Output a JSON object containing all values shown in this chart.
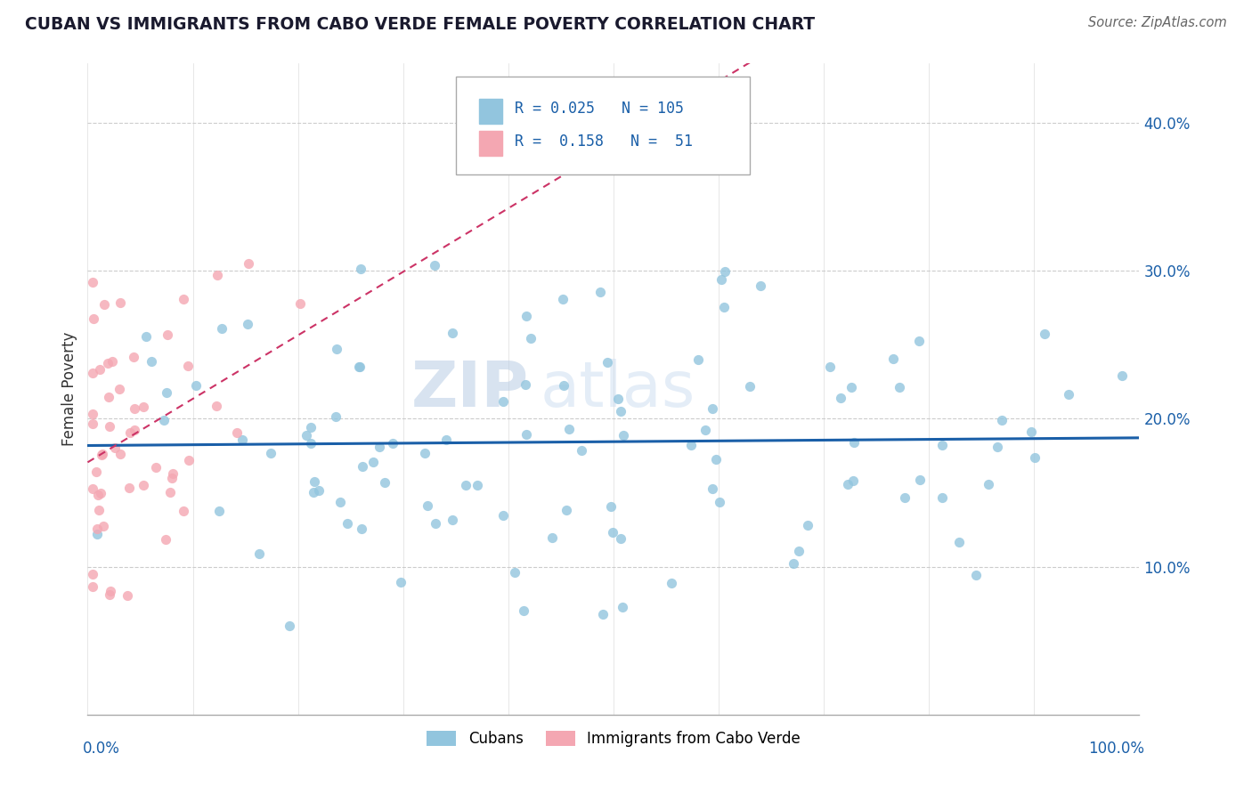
{
  "title": "CUBAN VS IMMIGRANTS FROM CABO VERDE FEMALE POVERTY CORRELATION CHART",
  "source": "Source: ZipAtlas.com",
  "ylabel": "Female Poverty",
  "right_yticks": [
    "40.0%",
    "30.0%",
    "20.0%",
    "10.0%"
  ],
  "right_ytick_vals": [
    0.4,
    0.3,
    0.2,
    0.1
  ],
  "legend_cubans_R": "0.025",
  "legend_cubans_N": "105",
  "legend_cabo_R": "0.158",
  "legend_cabo_N": "51",
  "cubans_color": "#92c5de",
  "cabo_color": "#f4a7b2",
  "trend_cuban_color": "#1a5fa8",
  "trend_cabo_color": "#cc3366",
  "watermark_zip": "ZIP",
  "watermark_atlas": "atlas",
  "ylim_min": 0.0,
  "ylim_max": 0.44,
  "xlim_min": 0.0,
  "xlim_max": 1.0,
  "seed": 42
}
